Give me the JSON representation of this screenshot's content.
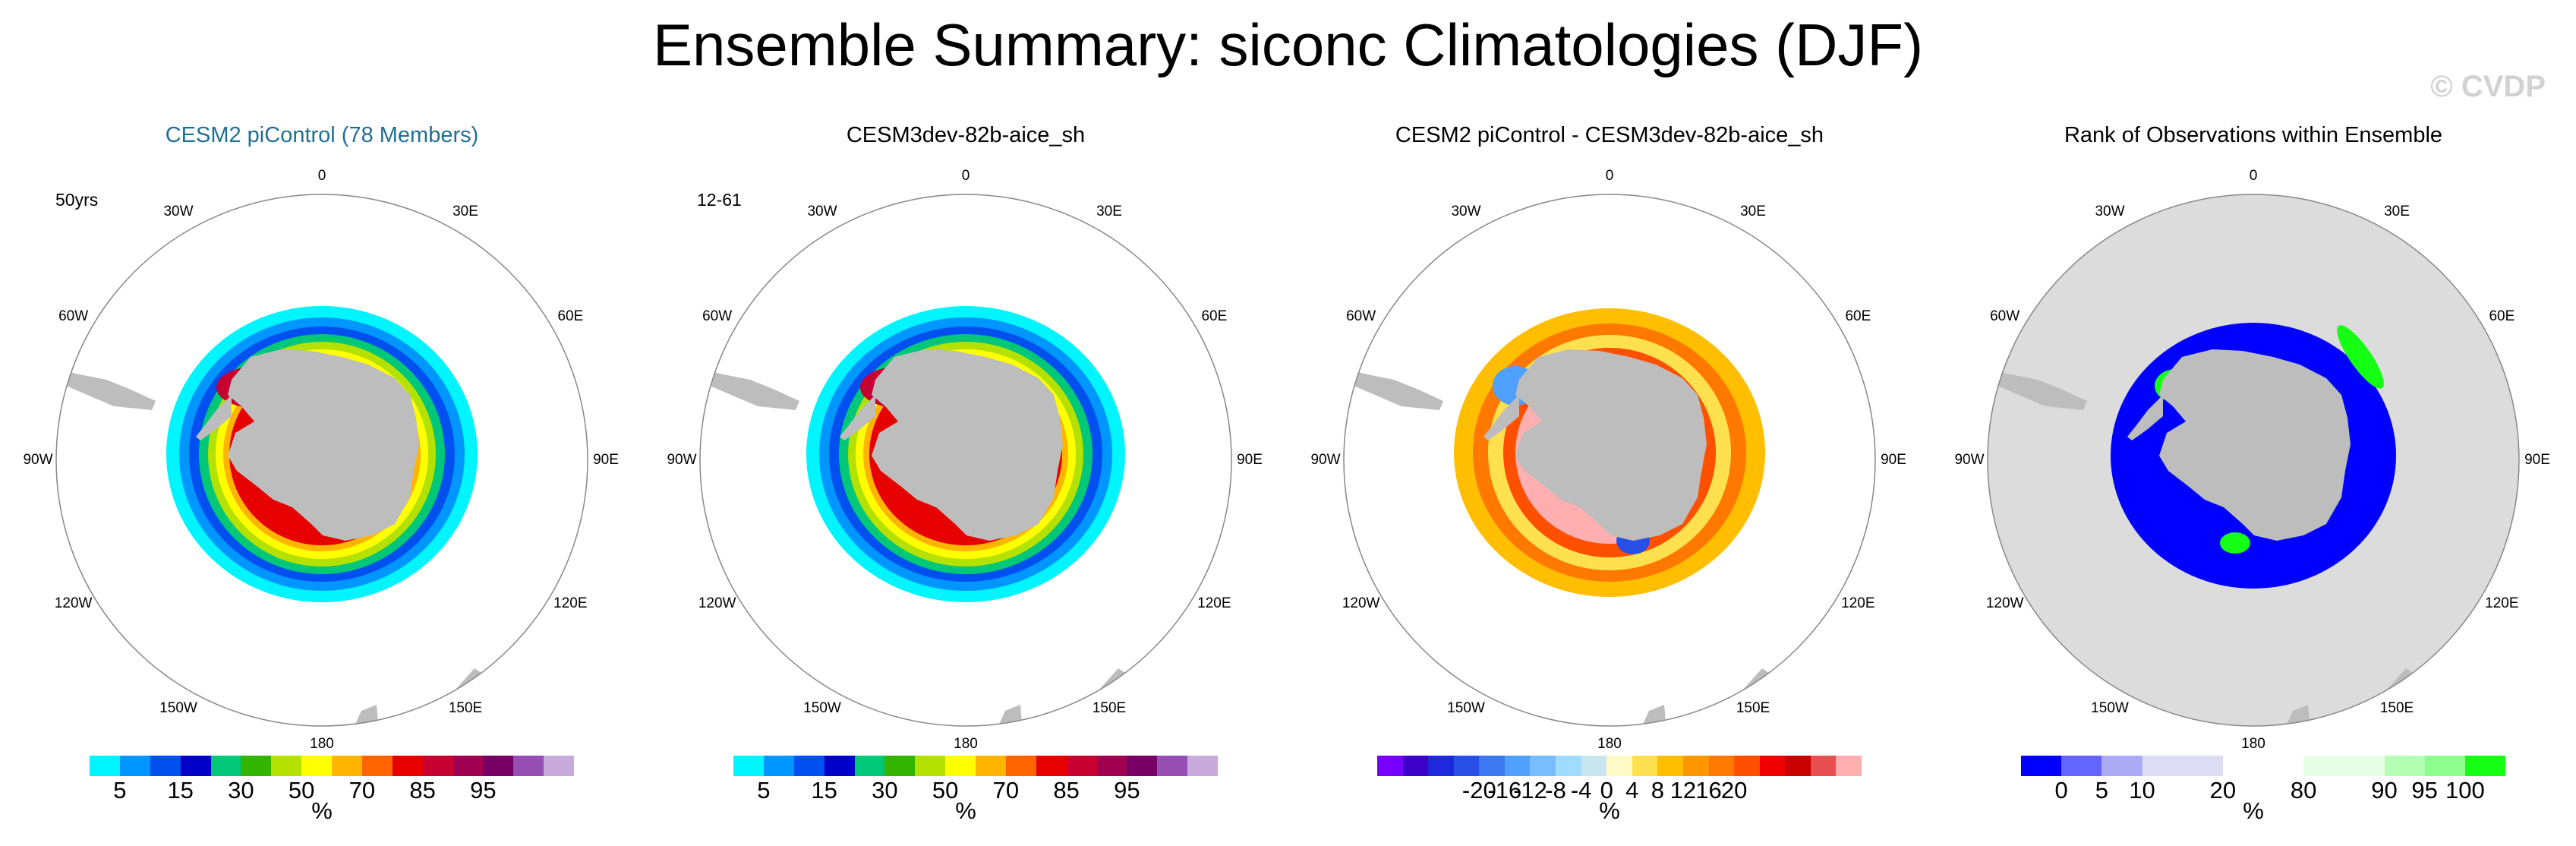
{
  "title": "Ensemble Summary: siconc Climatologies (DJF)",
  "watermark": "© CVDP",
  "panels": [
    {
      "title": "CESM2 piControl (78 Members)",
      "corner": "50yrs",
      "accent": true,
      "kind": "conc"
    },
    {
      "title": "CESM3dev-82b-aice_sh",
      "corner": "12-61",
      "accent": false,
      "kind": "conc"
    },
    {
      "title": "CESM2 piControl - CESM3dev-82b-aice_sh",
      "corner": "",
      "accent": false,
      "kind": "diff"
    },
    {
      "title": "Rank of Observations within Ensemble",
      "corner": "",
      "accent": false,
      "kind": "rank"
    }
  ],
  "longitude_labels": [
    "0",
    "30E",
    "60E",
    "90E",
    "120E",
    "150E",
    "180",
    "150W",
    "120W",
    "90W",
    "60W",
    "30W"
  ],
  "colorbars": {
    "conc": {
      "colors": [
        "#00f5ff",
        "#0096ff",
        "#0050f0",
        "#0000c8",
        "#00c878",
        "#32b400",
        "#b4e100",
        "#ffff00",
        "#ffb400",
        "#ff6400",
        "#e60000",
        "#c80032",
        "#a00050",
        "#780064",
        "#9650b4",
        "#c8aadc"
      ],
      "ticks": [
        [
          "5",
          1
        ],
        [
          "15",
          3
        ],
        [
          "30",
          5
        ],
        [
          "50",
          7
        ],
        [
          "70",
          9
        ],
        [
          "85",
          11
        ],
        [
          "95",
          13
        ]
      ],
      "unit": "%"
    },
    "diff": {
      "colors": [
        "#7800ff",
        "#3c00c8",
        "#1e28dc",
        "#2850e6",
        "#3c78f0",
        "#50a0ff",
        "#78beff",
        "#a0dcff",
        "#c8e6f0",
        "#fffac8",
        "#ffe150",
        "#ffbe00",
        "#ff9600",
        "#ff7800",
        "#ff5000",
        "#f00000",
        "#c80000",
        "#e65050",
        "#ffafaf"
      ],
      "ticks": [
        [
          "-20",
          1
        ],
        [
          "-16",
          2
        ],
        [
          "-12",
          3
        ],
        [
          "-8",
          4
        ],
        [
          "-4",
          5
        ],
        [
          "0",
          6
        ],
        [
          "4",
          7
        ],
        [
          "8",
          8
        ],
        [
          "12",
          9
        ],
        [
          "16",
          10
        ],
        [
          "20",
          11
        ]
      ],
      "unit": "%"
    },
    "rank": {
      "colors": [
        "#0000ff",
        "#6464ff",
        "#aaaaf5",
        "#dcdcf5",
        "#dcdcf5",
        "#ffffff",
        "#ffffff",
        "#e6ffe6",
        "#e6ffe6",
        "#b4ffb4",
        "#8cff8c",
        "#14ff14"
      ],
      "ticks": [
        [
          "0",
          1
        ],
        [
          "5",
          2
        ],
        [
          "10",
          3
        ],
        [
          "20",
          5
        ],
        [
          "80",
          7
        ],
        [
          "90",
          9
        ],
        [
          "95",
          10
        ],
        [
          "100",
          11
        ]
      ],
      "unit": "%"
    }
  }
}
